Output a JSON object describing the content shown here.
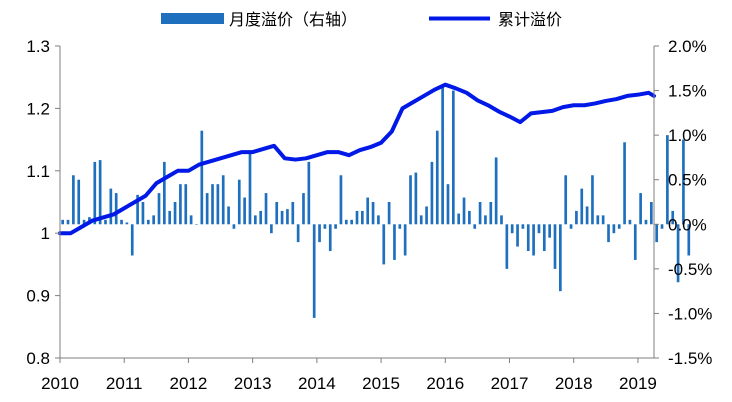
{
  "chart_data": {
    "type": "bar+line",
    "title": "",
    "legend": {
      "placement": "top-center",
      "entries": [
        {
          "name": "月度溢价（右轴）",
          "type": "bar",
          "color": "#1f6fbf"
        },
        {
          "name": "累计溢价",
          "type": "line",
          "color": "#0019e6"
        }
      ]
    },
    "x_axis": {
      "ticks": [
        "2010",
        "2011",
        "2012",
        "2013",
        "2014",
        "2015",
        "2016",
        "2017",
        "2018",
        "2019"
      ],
      "range_months": [
        0,
        111
      ]
    },
    "y_left": {
      "ticks": [
        "0.8",
        "0.9",
        "1",
        "1.1",
        "1.2",
        "1.3"
      ],
      "range": [
        0.8,
        1.3
      ]
    },
    "y_right": {
      "ticks": [
        "-1.5%",
        "-1.0%",
        "-0.5%",
        "0.0%",
        "0.5%",
        "1.0%",
        "1.5%",
        "2.0%"
      ],
      "range": [
        -1.5,
        2.0
      ]
    },
    "series": [
      {
        "name": "月度溢价（右轴）",
        "axis": "right",
        "unit": "%",
        "values": [
          0.05,
          0.05,
          0.55,
          0.5,
          0.05,
          0.08,
          0.7,
          0.72,
          0.05,
          0.4,
          0.35,
          0.05,
          0.02,
          -0.35,
          0.33,
          0.25,
          0.05,
          0.1,
          0.35,
          0.7,
          0.15,
          0.25,
          0.45,
          0.45,
          0.1,
          0.0,
          1.05,
          0.35,
          0.45,
          0.45,
          0.55,
          0.2,
          -0.05,
          0.5,
          0.3,
          0.82,
          0.1,
          0.15,
          0.35,
          -0.1,
          0.25,
          0.15,
          0.17,
          0.25,
          -0.2,
          0.35,
          0.7,
          -1.05,
          -0.2,
          -0.05,
          -0.3,
          -0.05,
          0.55,
          0.05,
          0.05,
          0.15,
          0.15,
          0.3,
          0.25,
          0.1,
          -0.45,
          0.25,
          -0.4,
          -0.05,
          -0.35,
          0.55,
          0.58,
          0.1,
          0.2,
          0.7,
          1.05,
          1.55,
          0.45,
          1.5,
          0.12,
          0.3,
          0.15,
          -0.05,
          0.25,
          0.1,
          0.25,
          0.75,
          0.1,
          -0.5,
          -0.1,
          -0.25,
          -0.05,
          -0.3,
          -0.35,
          -0.1,
          -0.3,
          -0.15,
          -0.5,
          -0.75,
          0.55,
          -0.05,
          0.15,
          0.4,
          0.2,
          0.55,
          0.1,
          0.1,
          -0.2,
          -0.1,
          -0.05,
          0.92,
          0.05,
          -0.4,
          0.35,
          0.05,
          0.25,
          -0.2,
          -0.05,
          1.0,
          0.15,
          -0.65,
          0.95,
          -0.35
        ],
        "note": ""
      },
      {
        "name": "累计溢价",
        "axis": "left",
        "x_months": [
          0,
          2,
          4,
          6,
          8,
          10,
          12,
          14,
          16,
          18,
          20,
          22,
          24,
          26,
          28,
          30,
          32,
          34,
          36,
          38,
          40,
          42,
          44,
          46,
          48,
          50,
          52,
          54,
          56,
          58,
          60,
          62,
          64,
          66,
          68,
          70,
          72,
          74,
          76,
          78,
          80,
          82,
          84,
          86,
          88,
          90,
          92,
          94,
          96,
          98,
          100,
          102,
          104,
          106,
          108,
          110,
          111
        ],
        "values": [
          1.0,
          1.0,
          1.01,
          1.02,
          1.025,
          1.03,
          1.04,
          1.05,
          1.06,
          1.08,
          1.09,
          1.1,
          1.1,
          1.11,
          1.115,
          1.12,
          1.125,
          1.13,
          1.13,
          1.135,
          1.14,
          1.12,
          1.118,
          1.12,
          1.125,
          1.13,
          1.13,
          1.125,
          1.133,
          1.138,
          1.145,
          1.163,
          1.2,
          1.21,
          1.22,
          1.23,
          1.238,
          1.232,
          1.225,
          1.213,
          1.205,
          1.195,
          1.187,
          1.178,
          1.192,
          1.194,
          1.196,
          1.202,
          1.205,
          1.205,
          1.208,
          1.212,
          1.215,
          1.22,
          1.222,
          1.225,
          1.22
        ]
      }
    ]
  }
}
